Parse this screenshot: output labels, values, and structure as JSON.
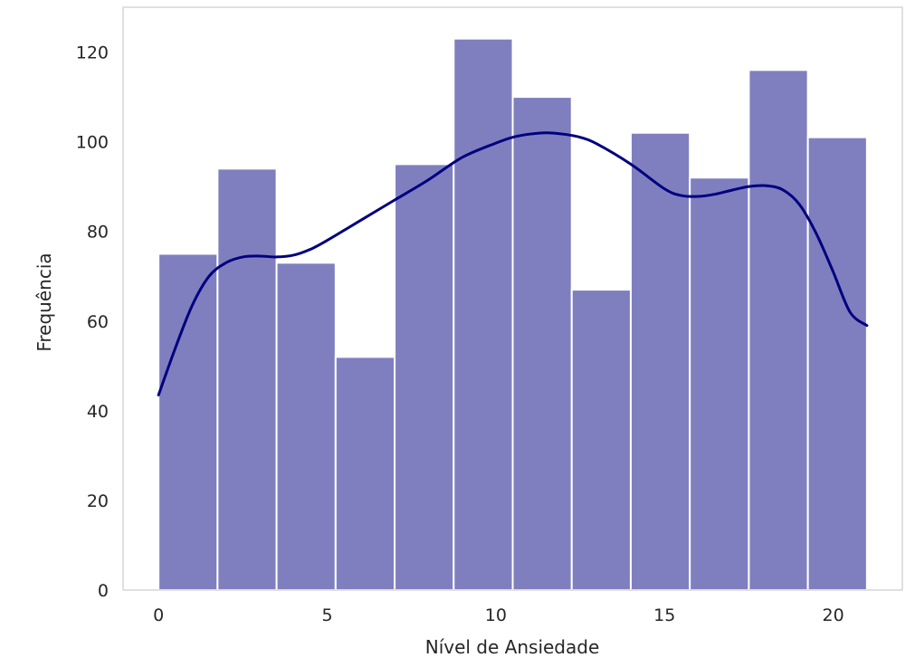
{
  "chart_data": {
    "type": "bar",
    "xlabel": "Nível de Ansiedade",
    "ylabel": "Frequência",
    "xlim": [
      -1.05,
      22.05
    ],
    "ylim": [
      0,
      130
    ],
    "grid": false,
    "xticks": [
      0,
      5,
      10,
      15,
      20
    ],
    "yticks": [
      0,
      20,
      40,
      60,
      80,
      100,
      120
    ],
    "bin_edges": [
      0,
      1.75,
      3.5,
      5.25,
      7.0,
      8.75,
      10.5,
      12.25,
      14.0,
      15.75,
      17.5,
      19.25,
      21.0
    ],
    "values": [
      75,
      94,
      73,
      52,
      95,
      123,
      110,
      67,
      102,
      92,
      116,
      101
    ],
    "bar_color": "#7f7fbf",
    "bar_edge_color": "#ffffff",
    "kde": {
      "color": "#000080",
      "x": [
        0,
        0.5,
        1,
        1.5,
        2,
        2.5,
        3,
        3.5,
        4,
        4.5,
        5,
        6,
        7,
        8,
        9,
        10,
        10.5,
        11,
        11.5,
        12,
        12.5,
        13,
        14,
        15,
        15.5,
        16,
        16.5,
        17,
        17.5,
        18,
        18.5,
        19,
        19.5,
        20,
        20.5,
        21
      ],
      "y": [
        43.5,
        54,
        63.5,
        70,
        73,
        74.3,
        74.5,
        74.3,
        74.7,
        76,
        78,
        82.5,
        87,
        91.5,
        96.5,
        99.7,
        101,
        101.7,
        102,
        101.7,
        101,
        99.5,
        95,
        89.5,
        88,
        87.8,
        88.3,
        89.2,
        90,
        90.2,
        89.3,
        86,
        79.5,
        71,
        62,
        59
      ]
    }
  }
}
